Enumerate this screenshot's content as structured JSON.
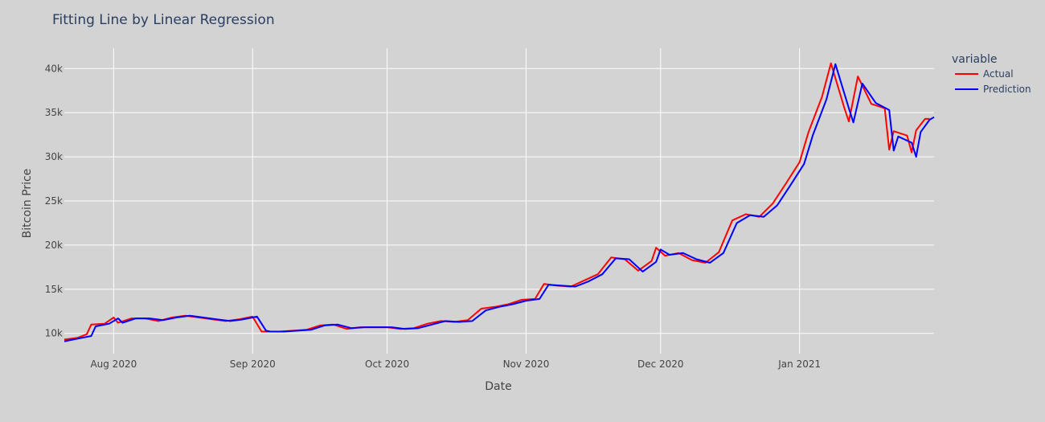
{
  "chart_data": {
    "type": "line",
    "title": "Fitting Line by Linear Regression",
    "xlabel": "Date",
    "ylabel": "Bitcoin Price",
    "xlim": [
      "2020-07-21",
      "2021-01-31"
    ],
    "ylim": [
      7700,
      42300
    ],
    "grid": true,
    "legend": {
      "title": "variable",
      "placement": "top-right, outside"
    },
    "x_ticks": [
      {
        "date": "2020-08-01",
        "label": "Aug 2020"
      },
      {
        "date": "2020-09-01",
        "label": "Sep 2020"
      },
      {
        "date": "2020-10-01",
        "label": "Oct 2020"
      },
      {
        "date": "2020-11-01",
        "label": "Nov 2020"
      },
      {
        "date": "2020-12-01",
        "label": "Dec 2020"
      },
      {
        "date": "2021-01-01",
        "label": "Jan 2021"
      }
    ],
    "y_ticks": [
      {
        "value": 10000,
        "label": "10k"
      },
      {
        "value": 15000,
        "label": "15k"
      },
      {
        "value": 20000,
        "label": "20k"
      },
      {
        "value": 25000,
        "label": "25k"
      },
      {
        "value": 30000,
        "label": "30k"
      },
      {
        "value": 35000,
        "label": "35k"
      },
      {
        "value": 40000,
        "label": "40k"
      }
    ],
    "series": [
      {
        "name": "Actual",
        "color": "#ff0000",
        "x": [
          "2020-07-21",
          "2020-07-24",
          "2020-07-26",
          "2020-07-27",
          "2020-07-30",
          "2020-08-01",
          "2020-08-02",
          "2020-08-05",
          "2020-08-08",
          "2020-08-11",
          "2020-08-14",
          "2020-08-17",
          "2020-08-20",
          "2020-08-23",
          "2020-08-26",
          "2020-08-29",
          "2020-09-01",
          "2020-09-03",
          "2020-09-04",
          "2020-09-07",
          "2020-09-10",
          "2020-09-13",
          "2020-09-16",
          "2020-09-19",
          "2020-09-22",
          "2020-09-25",
          "2020-09-28",
          "2020-10-01",
          "2020-10-04",
          "2020-10-07",
          "2020-10-10",
          "2020-10-13",
          "2020-10-16",
          "2020-10-19",
          "2020-10-22",
          "2020-10-25",
          "2020-10-28",
          "2020-10-31",
          "2020-11-03",
          "2020-11-05",
          "2020-11-08",
          "2020-11-11",
          "2020-11-14",
          "2020-11-17",
          "2020-11-20",
          "2020-11-23",
          "2020-11-26",
          "2020-11-29",
          "2020-11-30",
          "2020-12-02",
          "2020-12-05",
          "2020-12-08",
          "2020-12-11",
          "2020-12-14",
          "2020-12-17",
          "2020-12-20",
          "2020-12-23",
          "2020-12-26",
          "2020-12-29",
          "2021-01-01",
          "2021-01-03",
          "2021-01-06",
          "2021-01-08",
          "2021-01-11",
          "2021-01-12",
          "2021-01-14",
          "2021-01-17",
          "2021-01-20",
          "2021-01-21",
          "2021-01-22",
          "2021-01-25",
          "2021-01-26",
          "2021-01-27",
          "2021-01-29",
          "2021-01-30"
        ],
        "values": [
          9300,
          9500,
          9900,
          11000,
          11100,
          11800,
          11200,
          11700,
          11700,
          11400,
          11800,
          12000,
          11800,
          11600,
          11400,
          11600,
          11900,
          10200,
          10200,
          10200,
          10300,
          10400,
          10900,
          11000,
          10500,
          10700,
          10700,
          10700,
          10500,
          10600,
          11100,
          11400,
          11300,
          11500,
          12800,
          13000,
          13300,
          13800,
          13900,
          15600,
          15400,
          15300,
          16000,
          16700,
          18600,
          18400,
          17100,
          18200,
          19700,
          18800,
          19100,
          18300,
          18000,
          19200,
          22800,
          23500,
          23200,
          24700,
          27000,
          29400,
          32800,
          36800,
          40600,
          35500,
          34000,
          39100,
          36000,
          35500,
          30800,
          32900,
          32400,
          30500,
          33000,
          34300,
          34300
        ]
      },
      {
        "name": "Prediction",
        "color": "#0000ff",
        "x": [
          "2020-07-21",
          "2020-07-25",
          "2020-07-27",
          "2020-07-28",
          "2020-07-31",
          "2020-08-02",
          "2020-08-03",
          "2020-08-06",
          "2020-08-09",
          "2020-08-12",
          "2020-08-15",
          "2020-08-18",
          "2020-08-21",
          "2020-08-24",
          "2020-08-27",
          "2020-08-30",
          "2020-09-02",
          "2020-09-04",
          "2020-09-05",
          "2020-09-08",
          "2020-09-11",
          "2020-09-14",
          "2020-09-17",
          "2020-09-20",
          "2020-09-23",
          "2020-09-26",
          "2020-09-29",
          "2020-10-02",
          "2020-10-05",
          "2020-10-08",
          "2020-10-11",
          "2020-10-14",
          "2020-10-17",
          "2020-10-20",
          "2020-10-23",
          "2020-10-26",
          "2020-10-29",
          "2020-11-01",
          "2020-11-04",
          "2020-11-06",
          "2020-11-09",
          "2020-11-12",
          "2020-11-15",
          "2020-11-18",
          "2020-11-21",
          "2020-11-24",
          "2020-11-27",
          "2020-11-30",
          "2020-12-01",
          "2020-12-03",
          "2020-12-06",
          "2020-12-09",
          "2020-12-12",
          "2020-12-15",
          "2020-12-18",
          "2020-12-21",
          "2020-12-24",
          "2020-12-27",
          "2020-12-30",
          "2021-01-02",
          "2021-01-04",
          "2021-01-07",
          "2021-01-09",
          "2021-01-12",
          "2021-01-13",
          "2021-01-15",
          "2021-01-18",
          "2021-01-21",
          "2021-01-22",
          "2021-01-23",
          "2021-01-26",
          "2021-01-27",
          "2021-01-28",
          "2021-01-30",
          "2021-01-31"
        ],
        "values": [
          9100,
          9500,
          9700,
          10800,
          11100,
          11700,
          11200,
          11700,
          11700,
          11500,
          11800,
          12000,
          11800,
          11600,
          11400,
          11600,
          11900,
          10300,
          10200,
          10200,
          10300,
          10400,
          10900,
          11000,
          10600,
          10700,
          10700,
          10700,
          10500,
          10600,
          11000,
          11400,
          11300,
          11400,
          12600,
          13000,
          13300,
          13700,
          13900,
          15500,
          15400,
          15300,
          15900,
          16700,
          18500,
          18400,
          17000,
          18100,
          19500,
          18900,
          19100,
          18400,
          18000,
          19100,
          22500,
          23400,
          23200,
          24500,
          26800,
          29200,
          32500,
          36500,
          40500,
          35500,
          33900,
          38300,
          36100,
          35300,
          30700,
          32300,
          31600,
          30000,
          32800,
          34200,
          34500
        ]
      }
    ]
  }
}
